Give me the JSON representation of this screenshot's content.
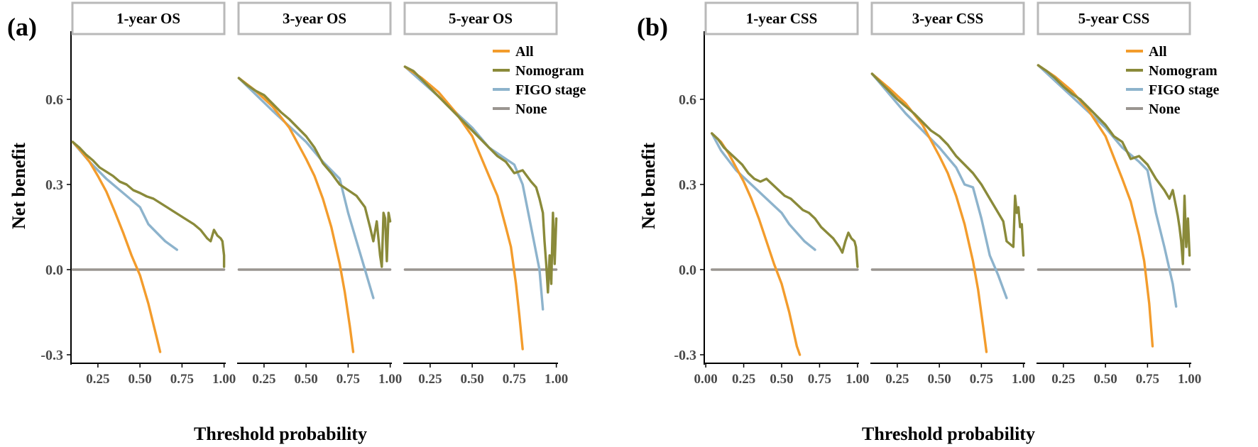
{
  "colors": {
    "all": "#F39C2C",
    "nomogram": "#8A8A3A",
    "figo": "#8DB3CC",
    "none": "#9A9590",
    "strip_border": "#B9B9B9",
    "axis": "#000000",
    "tick_text": "#4A4A4A"
  },
  "legend": [
    "All",
    "Nomogram",
    "FIGO stage",
    "None"
  ],
  "chart_data": [
    {
      "type": "line",
      "panel_label": "(a)",
      "ylabel": "Net benefit",
      "xlabel": "Threshold probability",
      "ylim": [
        -0.33,
        0.83
      ],
      "yticks": [
        -0.3,
        0.0,
        0.3,
        0.6
      ],
      "ytick_labels": [
        "-0.3",
        "0.0",
        "0.3",
        "0.6"
      ],
      "xticks": [
        0.25,
        0.5,
        0.75,
        1.0
      ],
      "xtick_labels": [
        "0.25",
        "0.50",
        "0.75",
        "1.00"
      ],
      "legend_position": "top-right",
      "facets": [
        {
          "title": "1-year OS",
          "xlim": [
            0.09,
            1.01
          ],
          "series": [
            {
              "name": "All",
              "x": [
                0.1,
                0.15,
                0.2,
                0.25,
                0.3,
                0.35,
                0.4,
                0.45,
                0.5,
                0.55,
                0.6,
                0.62
              ],
              "y": [
                0.45,
                0.418,
                0.38,
                0.33,
                0.275,
                0.205,
                0.13,
                0.05,
                -0.02,
                -0.12,
                -0.24,
                -0.29
              ]
            },
            {
              "name": "Nomogram",
              "x": [
                0.1,
                0.14,
                0.18,
                0.22,
                0.26,
                0.3,
                0.34,
                0.38,
                0.42,
                0.46,
                0.5,
                0.54,
                0.58,
                0.62,
                0.66,
                0.7,
                0.74,
                0.78,
                0.82,
                0.86,
                0.88,
                0.9,
                0.92,
                0.94,
                0.96,
                0.98,
                0.99,
                1.0,
                1.0
              ],
              "y": [
                0.45,
                0.43,
                0.405,
                0.385,
                0.36,
                0.345,
                0.33,
                0.31,
                0.3,
                0.28,
                0.27,
                0.258,
                0.25,
                0.235,
                0.22,
                0.205,
                0.19,
                0.175,
                0.16,
                0.14,
                0.125,
                0.11,
                0.1,
                0.14,
                0.12,
                0.11,
                0.1,
                0.05,
                0.01
              ]
            },
            {
              "name": "FIGO stage",
              "x": [
                0.1,
                0.2,
                0.3,
                0.4,
                0.5,
                0.55,
                0.6,
                0.65,
                0.72
              ],
              "y": [
                0.45,
                0.38,
                0.32,
                0.27,
                0.22,
                0.16,
                0.13,
                0.1,
                0.07
              ]
            },
            {
              "name": "None",
              "x": [
                0.1,
                1.0
              ],
              "y": [
                0,
                0
              ]
            }
          ]
        },
        {
          "title": "3-year OS",
          "xlim": [
            0.09,
            1.01
          ],
          "series": [
            {
              "name": "All",
              "x": [
                0.1,
                0.2,
                0.3,
                0.4,
                0.5,
                0.55,
                0.6,
                0.65,
                0.7,
                0.73,
                0.76,
                0.78
              ],
              "y": [
                0.675,
                0.63,
                0.575,
                0.5,
                0.39,
                0.33,
                0.25,
                0.15,
                0.02,
                -0.08,
                -0.2,
                -0.29
              ]
            },
            {
              "name": "Nomogram",
              "x": [
                0.1,
                0.15,
                0.2,
                0.25,
                0.3,
                0.35,
                0.4,
                0.45,
                0.5,
                0.55,
                0.6,
                0.65,
                0.7,
                0.75,
                0.8,
                0.85,
                0.88,
                0.9,
                0.92,
                0.94,
                0.95,
                0.96,
                0.97,
                0.98,
                0.99,
                1.0
              ],
              "y": [
                0.675,
                0.65,
                0.63,
                0.615,
                0.585,
                0.555,
                0.53,
                0.5,
                0.47,
                0.43,
                0.375,
                0.34,
                0.3,
                0.28,
                0.26,
                0.22,
                0.15,
                0.1,
                0.17,
                0.05,
                0.01,
                0.2,
                0.18,
                0.03,
                0.2,
                0.17
              ]
            },
            {
              "name": "FIGO stage",
              "x": [
                0.1,
                0.3,
                0.5,
                0.6,
                0.7,
                0.75,
                0.8,
                0.85,
                0.9
              ],
              "y": [
                0.675,
                0.56,
                0.45,
                0.38,
                0.32,
                0.2,
                0.1,
                0.0,
                -0.1
              ]
            },
            {
              "name": "None",
              "x": [
                0.1,
                1.0
              ],
              "y": [
                0,
                0
              ]
            }
          ]
        },
        {
          "title": "5-year OS",
          "xlim": [
            0.09,
            1.01
          ],
          "series": [
            {
              "name": "All",
              "x": [
                0.1,
                0.2,
                0.3,
                0.4,
                0.5,
                0.6,
                0.65,
                0.7,
                0.73,
                0.76,
                0.78,
                0.8
              ],
              "y": [
                0.715,
                0.675,
                0.625,
                0.555,
                0.47,
                0.33,
                0.26,
                0.15,
                0.08,
                -0.05,
                -0.16,
                -0.28
              ]
            },
            {
              "name": "Nomogram",
              "x": [
                0.1,
                0.15,
                0.2,
                0.25,
                0.3,
                0.35,
                0.4,
                0.45,
                0.5,
                0.55,
                0.6,
                0.65,
                0.7,
                0.75,
                0.8,
                0.85,
                0.88,
                0.9,
                0.92,
                0.93,
                0.94,
                0.95,
                0.96,
                0.97,
                0.98,
                0.99,
                1.0
              ],
              "y": [
                0.715,
                0.7,
                0.67,
                0.64,
                0.61,
                0.58,
                0.55,
                0.52,
                0.49,
                0.46,
                0.43,
                0.4,
                0.38,
                0.34,
                0.35,
                0.31,
                0.29,
                0.25,
                0.2,
                0.1,
                0.02,
                -0.08,
                0.05,
                -0.05,
                0.2,
                0.02,
                0.18
              ]
            },
            {
              "name": "FIGO stage",
              "x": [
                0.1,
                0.3,
                0.5,
                0.6,
                0.7,
                0.75,
                0.8,
                0.85,
                0.9,
                0.92
              ],
              "y": [
                0.715,
                0.61,
                0.5,
                0.43,
                0.39,
                0.37,
                0.3,
                0.15,
                0.0,
                -0.14
              ]
            },
            {
              "name": "None",
              "x": [
                0.1,
                1.0
              ],
              "y": [
                0,
                0
              ]
            }
          ]
        }
      ]
    },
    {
      "type": "line",
      "panel_label": "(b)",
      "ylabel": "Net benefit",
      "xlabel": "Threshold probability",
      "ylim": [
        -0.33,
        0.83
      ],
      "yticks": [
        -0.3,
        0.0,
        0.3,
        0.6
      ],
      "ytick_labels": [
        "-0.3",
        "0.0",
        "0.3",
        "0.6"
      ],
      "legend_position": "top-right",
      "facets": [
        {
          "title": "1-year CSS",
          "xlim": [
            -0.01,
            1.01
          ],
          "xticks": [
            0.0,
            0.25,
            0.5,
            0.75,
            1.0
          ],
          "xtick_labels": [
            "0.00",
            "0.25",
            "0.50",
            "0.75",
            "1.00"
          ],
          "series": [
            {
              "name": "All",
              "x": [
                0.04,
                0.1,
                0.15,
                0.2,
                0.25,
                0.3,
                0.35,
                0.4,
                0.45,
                0.5,
                0.55,
                0.6,
                0.62
              ],
              "y": [
                0.48,
                0.45,
                0.41,
                0.36,
                0.31,
                0.25,
                0.18,
                0.1,
                0.02,
                -0.05,
                -0.15,
                -0.27,
                -0.3
              ]
            },
            {
              "name": "Nomogram",
              "x": [
                0.04,
                0.08,
                0.12,
                0.16,
                0.2,
                0.24,
                0.28,
                0.32,
                0.36,
                0.4,
                0.44,
                0.48,
                0.52,
                0.56,
                0.6,
                0.64,
                0.68,
                0.72,
                0.76,
                0.8,
                0.84,
                0.88,
                0.9,
                0.92,
                0.94,
                0.96,
                0.98,
                0.99,
                1.0
              ],
              "y": [
                0.48,
                0.46,
                0.43,
                0.41,
                0.39,
                0.37,
                0.34,
                0.32,
                0.31,
                0.32,
                0.3,
                0.28,
                0.26,
                0.25,
                0.23,
                0.21,
                0.2,
                0.18,
                0.15,
                0.13,
                0.11,
                0.08,
                0.06,
                0.1,
                0.13,
                0.11,
                0.1,
                0.08,
                0.01
              ]
            },
            {
              "name": "FIGO stage",
              "x": [
                0.04,
                0.1,
                0.2,
                0.3,
                0.4,
                0.5,
                0.55,
                0.6,
                0.65,
                0.72
              ],
              "y": [
                0.48,
                0.42,
                0.35,
                0.3,
                0.25,
                0.2,
                0.16,
                0.13,
                0.1,
                0.07
              ]
            },
            {
              "name": "None",
              "x": [
                0.04,
                1.0
              ],
              "y": [
                0,
                0
              ]
            }
          ]
        },
        {
          "title": "3-year CSS",
          "xlim": [
            0.09,
            1.01
          ],
          "xticks": [
            0.25,
            0.5,
            0.75,
            1.0
          ],
          "xtick_labels": [
            "0.25",
            "0.50",
            "0.75",
            "1.00"
          ],
          "series": [
            {
              "name": "All",
              "x": [
                0.1,
                0.2,
                0.3,
                0.4,
                0.5,
                0.55,
                0.6,
                0.65,
                0.7,
                0.73,
                0.76,
                0.78
              ],
              "y": [
                0.69,
                0.64,
                0.585,
                0.51,
                0.4,
                0.34,
                0.26,
                0.16,
                0.03,
                -0.07,
                -0.2,
                -0.29
              ]
            },
            {
              "name": "Nomogram",
              "x": [
                0.1,
                0.15,
                0.2,
                0.25,
                0.3,
                0.35,
                0.4,
                0.45,
                0.5,
                0.55,
                0.6,
                0.65,
                0.7,
                0.75,
                0.8,
                0.85,
                0.88,
                0.9,
                0.92,
                0.94,
                0.95,
                0.96,
                0.97,
                0.98,
                0.99,
                1.0
              ],
              "y": [
                0.69,
                0.66,
                0.63,
                0.6,
                0.575,
                0.55,
                0.52,
                0.49,
                0.47,
                0.44,
                0.4,
                0.37,
                0.34,
                0.3,
                0.25,
                0.2,
                0.17,
                0.1,
                0.09,
                0.08,
                0.26,
                0.2,
                0.22,
                0.15,
                0.16,
                0.05
              ]
            },
            {
              "name": "FIGO stage",
              "x": [
                0.1,
                0.3,
                0.5,
                0.6,
                0.65,
                0.7,
                0.75,
                0.8,
                0.85,
                0.9
              ],
              "y": [
                0.69,
                0.55,
                0.43,
                0.36,
                0.3,
                0.29,
                0.18,
                0.05,
                -0.02,
                -0.1
              ]
            },
            {
              "name": "None",
              "x": [
                0.1,
                1.0
              ],
              "y": [
                0,
                0
              ]
            }
          ]
        },
        {
          "title": "5-year CSS",
          "xlim": [
            0.09,
            1.01
          ],
          "xticks": [
            0.25,
            0.5,
            0.75,
            1.0
          ],
          "xtick_labels": [
            "0.25",
            "0.50",
            "0.75",
            "1.00"
          ],
          "series": [
            {
              "name": "All",
              "x": [
                0.1,
                0.2,
                0.3,
                0.4,
                0.5,
                0.6,
                0.65,
                0.7,
                0.73,
                0.76,
                0.78
              ],
              "y": [
                0.72,
                0.68,
                0.63,
                0.56,
                0.47,
                0.32,
                0.24,
                0.12,
                0.03,
                -0.12,
                -0.27
              ]
            },
            {
              "name": "Nomogram",
              "x": [
                0.1,
                0.15,
                0.2,
                0.25,
                0.3,
                0.35,
                0.4,
                0.45,
                0.5,
                0.55,
                0.6,
                0.65,
                0.7,
                0.75,
                0.8,
                0.85,
                0.88,
                0.9,
                0.92,
                0.93,
                0.94,
                0.95,
                0.96,
                0.97,
                0.98,
                0.99,
                1.0
              ],
              "y": [
                0.72,
                0.7,
                0.675,
                0.645,
                0.62,
                0.6,
                0.57,
                0.54,
                0.51,
                0.47,
                0.45,
                0.39,
                0.4,
                0.37,
                0.32,
                0.28,
                0.25,
                0.28,
                0.22,
                0.19,
                0.15,
                0.1,
                0.02,
                0.26,
                0.08,
                0.18,
                0.05
              ]
            },
            {
              "name": "FIGO stage",
              "x": [
                0.1,
                0.3,
                0.5,
                0.6,
                0.7,
                0.75,
                0.8,
                0.85,
                0.9,
                0.92
              ],
              "y": [
                0.72,
                0.61,
                0.5,
                0.43,
                0.38,
                0.35,
                0.2,
                0.08,
                -0.05,
                -0.13
              ]
            },
            {
              "name": "None",
              "x": [
                0.1,
                1.0
              ],
              "y": [
                0,
                0
              ]
            }
          ]
        }
      ]
    }
  ]
}
